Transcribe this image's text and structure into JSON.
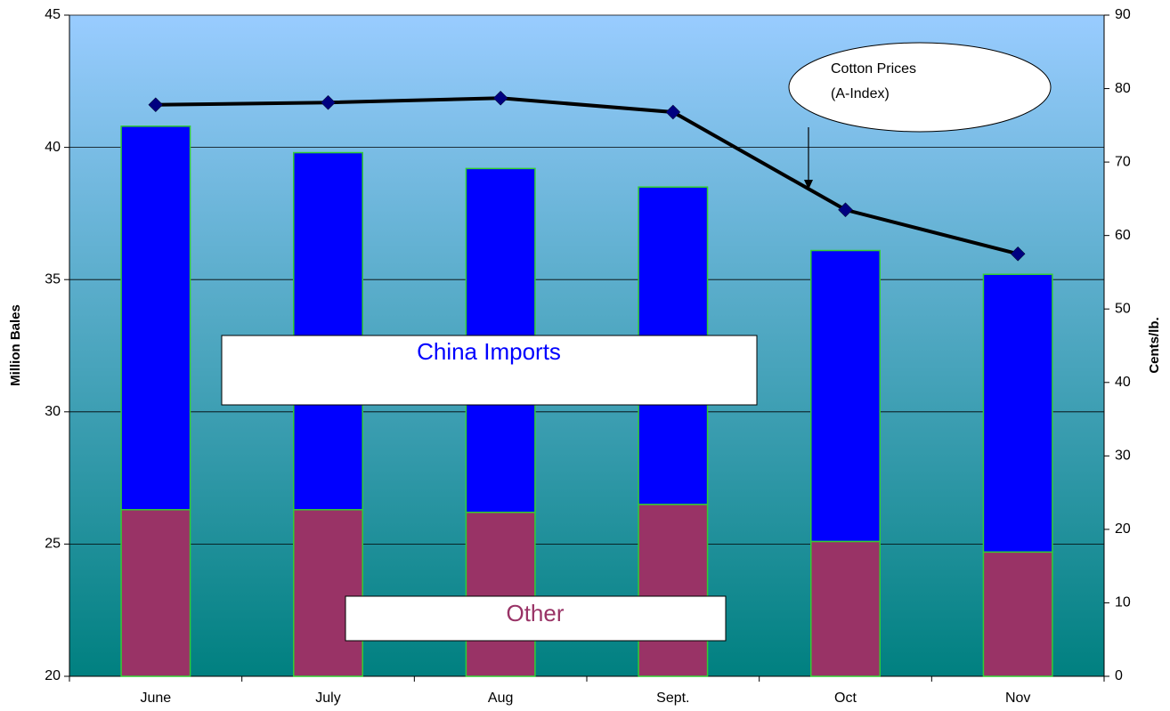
{
  "chart_data": {
    "type": "bar",
    "categories": [
      "June",
      "July",
      "Aug",
      "Sept.",
      "Oct",
      "Nov"
    ],
    "ylabel": "Million Bales",
    "y2label": "Cents/lb.",
    "ylim": [
      20,
      45
    ],
    "yticks": [
      20,
      25,
      30,
      35,
      40,
      45
    ],
    "y2lim": [
      0,
      90
    ],
    "y2ticks": [
      0,
      10,
      20,
      30,
      40,
      50,
      60,
      70,
      80,
      90
    ],
    "grid": true,
    "series": [
      {
        "name": "Other",
        "type": "bar",
        "color": "#993366",
        "values": [
          26.3,
          26.3,
          26.2,
          26.5,
          25.1,
          24.7
        ]
      },
      {
        "name": "China Imports",
        "type": "bar",
        "color": "#0000ff",
        "values": [
          14.5,
          13.5,
          13.0,
          12.0,
          11.0,
          10.5
        ]
      },
      {
        "type": "line",
        "axis": "y2",
        "color": "#000000",
        "marker_color": "#000080",
        "values": [
          77.8,
          78.1,
          78.7,
          76.8,
          63.5,
          57.5
        ]
      }
    ],
    "annotations": [
      {
        "lines": [
          "Cotton Prices",
          "(A-Index)"
        ]
      }
    ]
  }
}
